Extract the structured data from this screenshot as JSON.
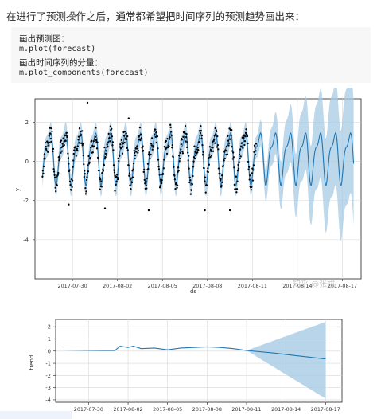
{
  "intro_text": "在进行了预测操作之后，通常都希望把时间序列的预测趋势画出来：",
  "code": {
    "comment1": "画出预测图：",
    "line1": "m.plot(forecast)",
    "comment2": "画出时间序列的分量：",
    "line2": "m.plot_components(forecast)"
  },
  "watermark": "知乎 @张戎",
  "colors": {
    "forecast": "#1f77b4",
    "band": "#a6cbe3",
    "observed": "#000000",
    "grid": "#d8d8d8"
  },
  "chart_data": [
    {
      "type": "line",
      "xlabel": "ds",
      "ylabel": "y",
      "x_ticks": [
        "2017-07-30",
        "2017-08-02",
        "2017-08-05",
        "2017-08-08",
        "2017-08-11",
        "2017-08-14",
        "2017-08-17"
      ],
      "y_ticks": [
        "2",
        "0",
        "-2",
        "-4"
      ],
      "ylim": [
        -6,
        3.2
      ],
      "grid": true,
      "series": [
        {
          "values": []
        }
      ]
    },
    {
      "type": "line",
      "xlabel": "",
      "ylabel": "trend",
      "x_ticks": [
        "2017-07-30",
        "2017-08-02",
        "2017-08-05",
        "2017-08-08",
        "2017-08-11",
        "2017-08-14",
        "2017-08-17"
      ],
      "y_ticks": [
        "2",
        "1",
        "0",
        "-1",
        "-2",
        "-3",
        "-4"
      ],
      "ylim": [
        -4.2,
        2.6
      ],
      "grid": true,
      "x": [
        "2017-07-28",
        "2017-07-31",
        "2017-08-01",
        "2017-08-01",
        "2017-08-02",
        "2017-08-02",
        "2017-08-03",
        "2017-08-04",
        "2017-08-05",
        "2017-08-06",
        "2017-08-07",
        "2017-08-08",
        "2017-08-09",
        "2017-08-10",
        "2017-08-11",
        "2017-08-13",
        "2017-08-15",
        "2017-08-17"
      ],
      "values": [
        0.08,
        0.05,
        0.05,
        0.4,
        0.3,
        0.4,
        0.2,
        0.25,
        0.1,
        0.25,
        0.3,
        0.35,
        0.3,
        0.2,
        0.05,
        -0.15,
        -0.4,
        -0.65
      ],
      "band_upper_end": 2.4,
      "band_lower_end": -3.9
    }
  ]
}
